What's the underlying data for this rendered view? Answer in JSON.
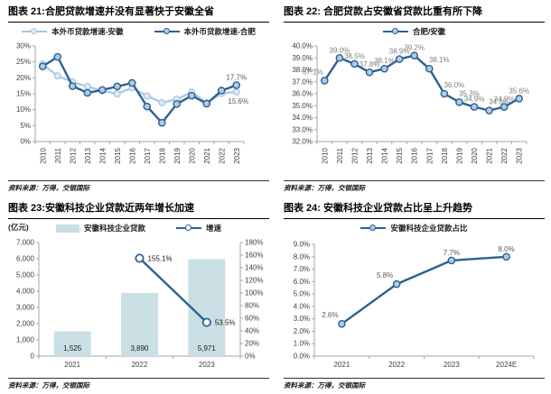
{
  "colors": {
    "dark_blue": "#2E6093",
    "light_blue": "#A9C6E2",
    "marker_fill": "#AECBE8",
    "light_marker_fill": "#DFEAF6",
    "open_marker_fill": "#FFFFFF",
    "bar_fill": "#C9DFE4",
    "axis": "#A6A6A6",
    "tick_text": "#404040",
    "label_gray": "#7F7F7F",
    "label_dark": "#595959",
    "black": "#1A1A1A"
  },
  "chart_data": [
    {
      "id": "fig21",
      "type": "line",
      "title": "图表 21:合肥贷款增速并没有显著快于安徽全省",
      "source": "资料来源：万得，交银国际",
      "categories": [
        "2010",
        "2011",
        "2012",
        "2013",
        "2014",
        "2015",
        "2016",
        "2017",
        "2018",
        "2019",
        "2020",
        "2021",
        "2022",
        "2023"
      ],
      "y_axis": {
        "min": 0,
        "max": 30,
        "step": 5,
        "format": "p0"
      },
      "series": [
        {
          "name": "本外币贷款增速-安徽",
          "type": "line",
          "color": "light",
          "marker": "light",
          "values": [
            24.3,
            20.6,
            18.7,
            17.3,
            15.9,
            15.0,
            16.9,
            14.3,
            12.2,
            13.3,
            15.5,
            12.1,
            15.1,
            15.6
          ]
        },
        {
          "name": "本外币贷款增速-合肥",
          "type": "line",
          "color": "dark",
          "marker": "filled",
          "values": [
            23.6,
            26.6,
            17.4,
            15.3,
            16.2,
            17.3,
            18.4,
            11.0,
            5.9,
            11.8,
            14.4,
            11.9,
            16.0,
            17.7
          ]
        }
      ],
      "labels": [
        {
          "text": "17.7%",
          "xi": 13,
          "y": 17.7,
          "pos": "above",
          "color": "#595959"
        },
        {
          "text": "15.6%",
          "xi": 13,
          "y": 15.6,
          "pos": "below",
          "color": "#595959"
        }
      ]
    },
    {
      "id": "fig22",
      "type": "line",
      "title": "图表 22: 合肥贷款占安徽省贷款比重有所下降",
      "source": "资料来源：万得，交银国际",
      "categories": [
        "2010",
        "2011",
        "2012",
        "2013",
        "2014",
        "2015",
        "2016",
        "2017",
        "2018",
        "2019",
        "2020",
        "2021",
        "2022",
        "2023"
      ],
      "y_axis": {
        "min": 32,
        "max": 40,
        "step": 1,
        "format": "p1"
      },
      "series": [
        {
          "name": "合肥/安徽",
          "type": "line",
          "color": "dark",
          "marker": "filled",
          "values": [
            37.1,
            39.0,
            38.5,
            37.8,
            38.1,
            38.9,
            39.2,
            38.1,
            36.0,
            35.3,
            34.9,
            34.6,
            34.9,
            35.6
          ]
        }
      ],
      "labels": [
        {
          "text": "37.1%",
          "xi": 0,
          "y": 37.1,
          "pos": "above-left",
          "color": "#7F7F7F"
        },
        {
          "text": "39.0%",
          "xi": 1,
          "y": 39.0,
          "pos": "above",
          "color": "#7F7F7F"
        },
        {
          "text": "38.5%",
          "xi": 2,
          "y": 38.5,
          "pos": "above",
          "color": "#7F7F7F"
        },
        {
          "text": "37.8%",
          "xi": 3,
          "y": 37.8,
          "pos": "above",
          "color": "#7F7F7F"
        },
        {
          "text": "38.1%",
          "xi": 4,
          "y": 38.1,
          "pos": "above",
          "color": "#7F7F7F"
        },
        {
          "text": "38.9%",
          "xi": 5,
          "y": 38.9,
          "pos": "above",
          "color": "#7F7F7F"
        },
        {
          "text": "39.2%",
          "xi": 6,
          "y": 39.2,
          "pos": "above",
          "color": "#7F7F7F"
        },
        {
          "text": "38.1%",
          "xi": 7,
          "y": 38.1,
          "pos": "above-right",
          "color": "#7F7F7F"
        },
        {
          "text": "36.0%",
          "xi": 8,
          "y": 36.0,
          "pos": "above-right",
          "color": "#7F7F7F"
        },
        {
          "text": "35.3%",
          "xi": 9,
          "y": 35.3,
          "pos": "above-right",
          "color": "#7F7F7F"
        },
        {
          "text": "34.9%",
          "xi": 10,
          "y": 34.9,
          "pos": "above",
          "color": "#7F7F7F"
        },
        {
          "text": "34.6%",
          "xi": 11,
          "y": 34.6,
          "pos": "above-right",
          "color": "#7F7F7F"
        },
        {
          "text": "34.9%",
          "xi": 12,
          "y": 34.9,
          "pos": "above",
          "color": "#7F7F7F"
        },
        {
          "text": "35.6%",
          "xi": 13,
          "y": 35.6,
          "pos": "above",
          "color": "#7F7F7F"
        }
      ]
    },
    {
      "id": "fig23",
      "type": "bar-line",
      "title": "图表 23:安徽科技企业贷款近两年增长加速",
      "source": "资料来源：万得，交银国际",
      "unit_label": "(亿元)",
      "categories": [
        "2021",
        "2022",
        "2023"
      ],
      "y_axis": {
        "min": 0,
        "max": 7000,
        "step": 1000,
        "format": "n0"
      },
      "right_axis": {
        "min": 0,
        "max": 180,
        "step": 20,
        "format": "p0"
      },
      "series": [
        {
          "name": "安徽科技企业贷款",
          "type": "bar",
          "color": "bar",
          "values": [
            1525,
            3890,
            5971
          ]
        },
        {
          "name": "增速",
          "type": "line",
          "color": "dark",
          "marker": "open",
          "axis": "right",
          "values": [
            null,
            155.1,
            53.5
          ]
        }
      ],
      "labels": [
        {
          "text": "1,525",
          "xi": 0,
          "y": 0,
          "pos": "inside-bottom",
          "color": "#1A1A1A"
        },
        {
          "text": "3,890",
          "xi": 1,
          "y": 0,
          "pos": "inside-bottom",
          "color": "#1A1A1A"
        },
        {
          "text": "5,971",
          "xi": 2,
          "y": 0,
          "pos": "inside-bottom",
          "color": "#1A1A1A"
        },
        {
          "text": "155.1%",
          "xi": 1,
          "y": 155.1,
          "axis": "right",
          "pos": "right",
          "color": "#1A1A1A"
        },
        {
          "text": "53.5%",
          "xi": 2,
          "y": 53.5,
          "axis": "right",
          "pos": "right",
          "color": "#1A1A1A"
        }
      ]
    },
    {
      "id": "fig24",
      "type": "line",
      "title": "图表 24: 安徽科技企业贷款占比呈上升趋势",
      "source": "资料来源：万得，交银国际",
      "categories": [
        "2021",
        "2022",
        "2023",
        "2024E"
      ],
      "y_axis": {
        "min": 0,
        "max": 9,
        "step": 1,
        "format": "p1"
      },
      "series": [
        {
          "name": "安徽科技企业贷款占比",
          "type": "line",
          "color": "dark",
          "marker": "filled",
          "values": [
            2.6,
            5.8,
            7.7,
            8.0
          ]
        }
      ],
      "labels": [
        {
          "text": "2.6%",
          "xi": 0,
          "y": 2.6,
          "pos": "above-left",
          "color": "#595959"
        },
        {
          "text": "5.8%",
          "xi": 1,
          "y": 5.8,
          "pos": "above-left",
          "color": "#595959"
        },
        {
          "text": "7.7%",
          "xi": 2,
          "y": 7.7,
          "pos": "above",
          "color": "#595959"
        },
        {
          "text": "8.0%",
          "xi": 3,
          "y": 8.0,
          "pos": "above",
          "color": "#595959"
        }
      ]
    }
  ]
}
